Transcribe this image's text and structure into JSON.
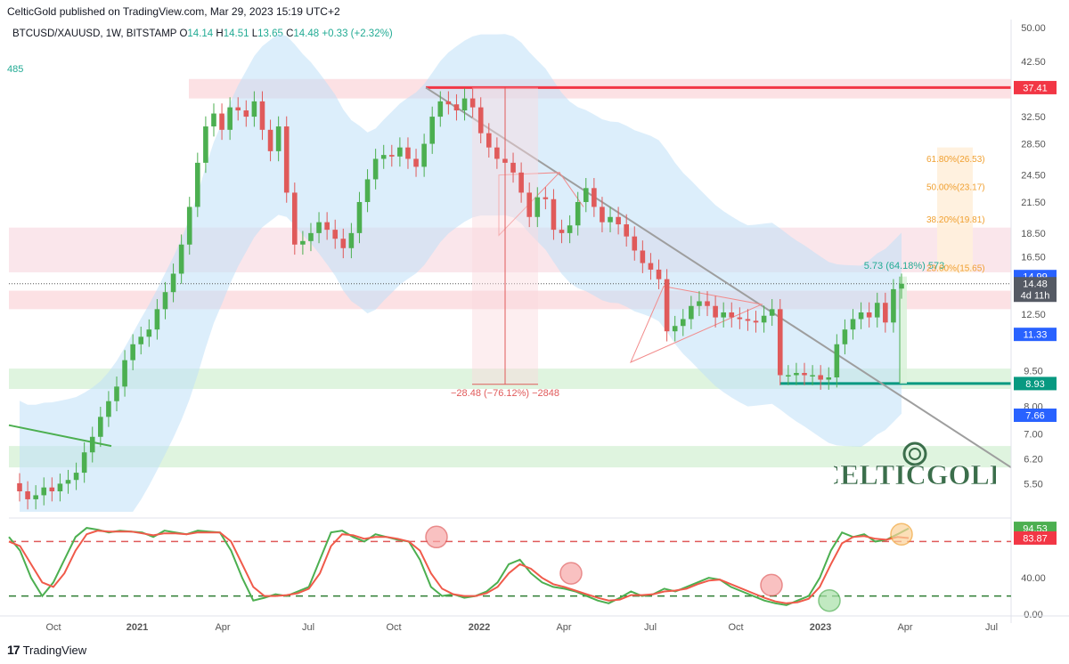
{
  "header": {
    "published": "CelticGold published on TradingView.com, Mar 29, 2023 15:19 UTC+2",
    "symbol": "BTCUSD/XAUUSD, 1W, BITSTAMP",
    "o_label": "O",
    "o_value": "14.14",
    "h_label": "H",
    "h_value": "14.51",
    "l_label": "L",
    "l_value": "13.65",
    "c_label": "C",
    "c_value": "14.48",
    "change": "+0.33 (+2.32%)",
    "left_fragment": "485"
  },
  "footer": {
    "brand": "TradingView"
  },
  "watermark": {
    "text": "CELTICGOLD"
  },
  "colors": {
    "up": "#4caf50",
    "down": "#e05a5a",
    "resistance": "#f23645",
    "support": "#089981",
    "bollinger": "#bfe0f7",
    "stoch_k": "#4caf50",
    "stoch_d": "#f05a4a"
  },
  "price_scale": [
    "50.00",
    "42.50",
    "37.41",
    "32.50",
    "28.50",
    "24.50",
    "21.50",
    "18.50",
    "16.50",
    "14.99",
    "14.48",
    "12.50",
    "11.33",
    "9.50",
    "8.93",
    "8.00",
    "7.66",
    "7.00",
    "6.20",
    "5.50"
  ],
  "price_boxes": [
    {
      "label": "37.41",
      "color": "#f23645"
    },
    {
      "label": "14.99",
      "color": "#2962ff"
    },
    {
      "label": "14.48",
      "sub": "4d 11h",
      "color": "#555a64"
    },
    {
      "label": "11.33",
      "color": "#2962ff"
    },
    {
      "label": "8.93",
      "color": "#089981"
    },
    {
      "label": "7.66",
      "color": "#2962ff"
    }
  ],
  "stoch_scale": [
    "94.53",
    "83.87",
    "40.00",
    "0.00"
  ],
  "time_axis": [
    "Oct",
    "2021",
    "Apr",
    "Jul",
    "Oct",
    "2022",
    "Apr",
    "Jul",
    "Oct",
    "2023",
    "Apr",
    "Jul"
  ],
  "annotations": {
    "drop": "−28.48 (−76.12%) −2848",
    "rise": "5.73 (64.18%) 573",
    "fib": [
      {
        "label": "61.80%(26.53)"
      },
      {
        "label": "50.00%(23.17)"
      },
      {
        "label": "38.20%(19.81)"
      },
      {
        "label": "23.60%(15.65)"
      }
    ]
  },
  "chart_data": {
    "type": "candlestick",
    "title": "BTCUSD/XAUUSD, 1W, BITSTAMP",
    "y_scale": "log",
    "ylim": [
      4.8,
      52
    ],
    "x_ticks": [
      "Oct",
      "2021",
      "Apr",
      "Jul",
      "Oct",
      "2022",
      "Apr",
      "Jul",
      "Oct",
      "2023",
      "Apr",
      "Jul"
    ],
    "closes": [
      5.3,
      5.1,
      5.2,
      5.4,
      5.3,
      5.5,
      5.6,
      5.8,
      6.4,
      6.9,
      7.6,
      8.2,
      8.8,
      10.0,
      10.8,
      11.2,
      11.6,
      12.8,
      13.9,
      15.2,
      17.5,
      21.0,
      26.0,
      31.0,
      33.0,
      30.5,
      34.0,
      33.5,
      32.5,
      35.0,
      30.5,
      27.5,
      31.0,
      22.5,
      17.5,
      17.8,
      18.5,
      19.5,
      18.8,
      18.0,
      17.2,
      18.5,
      21.5,
      24.0,
      26.5,
      27.0,
      26.8,
      28.0,
      26.5,
      25.5,
      28.5,
      32.5,
      35.0,
      34.5,
      33.5,
      35.5,
      34.0,
      30.0,
      28.0,
      26.5,
      26.0,
      24.8,
      22.5,
      20.0,
      22.0,
      21.8,
      18.8,
      18.5,
      19.2,
      21.5,
      23.0,
      21.0,
      19.5,
      20.0,
      19.3,
      18.2,
      17.0,
      16.0,
      15.5,
      14.8,
      11.5,
      11.8,
      12.2,
      13.0,
      13.3,
      13.0,
      12.3,
      12.6,
      12.3,
      12.2,
      12.1,
      12.0,
      12.4,
      12.8,
      9.3,
      9.3,
      9.4,
      9.3,
      9.3,
      9.1,
      9.2,
      10.8,
      11.6,
      12.2,
      12.6,
      12.3,
      13.2,
      12.0,
      14.1,
      14.48
    ],
    "levels": [
      {
        "name": "resistance",
        "value": 37.41
      },
      {
        "name": "support",
        "value": 8.93
      }
    ],
    "stochastic": {
      "k": [
        85,
        70,
        40,
        20,
        35,
        60,
        85,
        95,
        93,
        90,
        92,
        91,
        90,
        85,
        92,
        90,
        88,
        92,
        91,
        90,
        70,
        40,
        15,
        18,
        22,
        20,
        25,
        30,
        60,
        90,
        92,
        85,
        80,
        88,
        85,
        82,
        80,
        60,
        30,
        20,
        22,
        18,
        20,
        25,
        35,
        55,
        60,
        45,
        35,
        30,
        28,
        25,
        20,
        15,
        12,
        18,
        25,
        20,
        22,
        28,
        25,
        30,
        35,
        40,
        38,
        30,
        25,
        20,
        15,
        12,
        10,
        15,
        20,
        40,
        70,
        90,
        85,
        88,
        80,
        82,
        88,
        94.53
      ],
      "d": [
        80,
        75,
        55,
        35,
        30,
        45,
        70,
        88,
        92,
        91,
        91,
        91,
        89,
        87,
        89,
        89,
        88,
        90,
        90,
        90,
        80,
        55,
        30,
        20,
        20,
        21,
        23,
        28,
        45,
        75,
        88,
        87,
        83,
        85,
        85,
        83,
        80,
        70,
        45,
        28,
        22,
        20,
        20,
        23,
        30,
        45,
        55,
        50,
        40,
        33,
        30,
        26,
        22,
        18,
        15,
        16,
        21,
        21,
        22,
        25,
        26,
        28,
        33,
        37,
        38,
        33,
        28,
        23,
        18,
        14,
        12,
        13,
        17,
        30,
        55,
        78,
        85,
        86,
        83,
        82,
        85,
        83.87
      ]
    }
  }
}
